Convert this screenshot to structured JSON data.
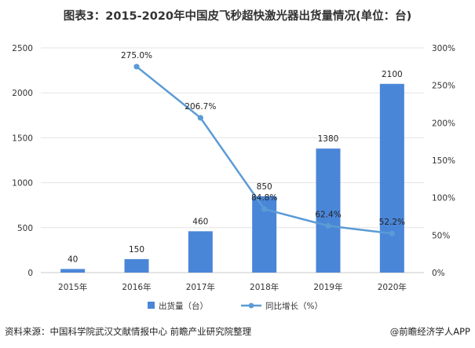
{
  "title": "图表3：2015-2020年中国皮飞秒超快激光器出货量情况(单位：台)",
  "footer": {
    "source": "资料来源：中国科学院武汉文献情报中心 前瞻产业研究院整理",
    "brand": "@前瞻经济学人APP"
  },
  "colors": {
    "bar": "#4a86d8",
    "line": "#5b9bd5",
    "grid": "#e3e3e3"
  },
  "chart_data": {
    "type": "bar",
    "categories": [
      "2015年",
      "2016年",
      "2017年",
      "2018年",
      "2019年",
      "2020年"
    ],
    "series": [
      {
        "name": "出货量（台）",
        "type": "bar",
        "axis": "left",
        "values": [
          40,
          150,
          460,
          850,
          1380,
          2100
        ],
        "labels": [
          "40",
          "150",
          "460",
          "850",
          "1380",
          "2100"
        ]
      },
      {
        "name": "同比增长（%）",
        "type": "line",
        "axis": "right",
        "values": [
          null,
          275.0,
          206.7,
          84.8,
          62.4,
          52.2
        ],
        "labels": [
          "",
          "275.0%",
          "206.7%",
          "84.8%",
          "62.4%",
          "52.2%"
        ]
      }
    ],
    "y_left": {
      "min": 0,
      "max": 2500,
      "ticks": [
        "0",
        "500",
        "1000",
        "1500",
        "2000",
        "2500"
      ]
    },
    "y_right": {
      "min": 0,
      "max": 300,
      "ticks": [
        "0%",
        "50%",
        "100%",
        "150%",
        "200%",
        "250%",
        "300%"
      ]
    },
    "grid": true,
    "legend": "bottom-center"
  }
}
